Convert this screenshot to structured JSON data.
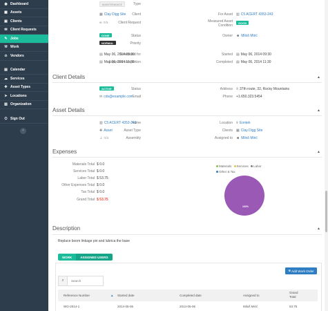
{
  "sidebar": {
    "items": [
      {
        "label": "Dashboard",
        "icon": "dashboard-icon",
        "glyph": "◉"
      },
      {
        "label": "Assets",
        "icon": "assets-icon",
        "glyph": "▦"
      },
      {
        "label": "Clients",
        "icon": "clients-icon",
        "glyph": "▣"
      },
      {
        "label": "Client Requests",
        "icon": "client-requests-icon",
        "glyph": "✉"
      },
      {
        "label": "Jobs",
        "icon": "jobs-icon",
        "glyph": "✎"
      },
      {
        "label": "Work",
        "icon": "work-icon",
        "glyph": "⚒"
      },
      {
        "label": "Vendors",
        "icon": "vendors-icon",
        "glyph": "⊙"
      },
      {
        "label": "Calendar",
        "icon": "calendar-icon",
        "glyph": "▤"
      },
      {
        "label": "Services",
        "icon": "services-icon",
        "glyph": "☁"
      },
      {
        "label": "Asset Types",
        "icon": "asset-types-icon",
        "glyph": "✚"
      },
      {
        "label": "Locations",
        "icon": "locations-icon",
        "glyph": "➤"
      },
      {
        "label": "Organization",
        "icon": "organization-icon",
        "glyph": "▥"
      },
      {
        "label": "Sign Out",
        "icon": "sign-out-icon",
        "glyph": "⏻"
      }
    ],
    "collapse_glyph": "‹"
  },
  "job": {
    "type_label": "Type",
    "type_value": "MAINTENANCE",
    "client_label": "Client",
    "client_value": "Clay Digg Site",
    "for_asset_label": "For Asset",
    "for_asset_value": "C5 ACERT 4353-243",
    "client_request_label": "Client Request",
    "client_request_value": "n/a",
    "measured_label_1": "Measured Asset",
    "measured_label_2": "Condition",
    "measured_value": "GOOD",
    "status_label": "Status",
    "status_value": "DONE",
    "owner_label": "Owner",
    "owner_value": "Miloš Mirić",
    "priority_label": "Priority",
    "priority_value": "NORMAL",
    "scheduled_label": "Scheduled for",
    "scheduled_value": "May 06, 2014 09:30",
    "started_label": "Started",
    "started_value": "May 06, 2014 09:30",
    "expected_label": "Expected completion",
    "expected_value": "May 06, 2014 11:30",
    "completed_label": "Completed",
    "completed_value": "May 06, 2014 11:30"
  },
  "client_details": {
    "title": "Client Details",
    "status_label": "Status",
    "status_value": "ACTIVE",
    "email_label": "Email",
    "email_value": "cds@example.com",
    "address_label": "Address",
    "address_value": "37th route, 32, Rocky Mountains",
    "phone_label": "Phone",
    "phone_value": "+1.650.323.5454"
  },
  "asset_details": {
    "title": "Asset Details",
    "name_label": "Name",
    "name_value": "C5 ACERT 4353-243",
    "asset_type_label": "Asset Type",
    "asset_type_value": "Asset",
    "assembly_label": "Assembly",
    "assembly_value": "n/a",
    "location_label": "Location",
    "location_value": "Eontek",
    "clients_label": "Clients",
    "clients_value": "Clay Digg Site",
    "assigned_label": "Assigned to",
    "assigned_value": "Miloš Mirić"
  },
  "expenses": {
    "title": "Expenses",
    "rows": [
      {
        "label": "Materials Total",
        "value": "$ 0.0"
      },
      {
        "label": "Services Total",
        "value": "$ 0.0"
      },
      {
        "label": "Labor Total",
        "value": "$ 53.75"
      },
      {
        "label": "Other Expenses Total",
        "value": "$ 0.0"
      },
      {
        "label": "Tax Total",
        "value": "$ 0.0"
      },
      {
        "label": "Grand Total",
        "value": "$ 53.75"
      }
    ]
  },
  "chart_data": {
    "type": "pie",
    "title": "",
    "legend": [
      "Materials",
      "Services",
      "Labor",
      "Other & Tax"
    ],
    "legend_colors": [
      "#8bc34a",
      "#e8c547",
      "#7f7f7f",
      "#2f7ec3"
    ],
    "values": [
      0,
      0,
      53.75,
      0
    ],
    "slice_color": "#9b59b6",
    "slice_label": "100%"
  },
  "description": {
    "title": "Description",
    "text": "Replace boom linkage pin and lubrica the base"
  },
  "work": {
    "tab_work": "WORK",
    "tab_assigned": "ASSIGNED USERS",
    "add_button": "Add Work Order",
    "search_placeholder": "Search",
    "columns": [
      "Reference Number",
      "Started date",
      "Completed date",
      "Assigned to",
      "Grand",
      "Total"
    ],
    "rows": [
      {
        "ref": "WO-2014-1",
        "started": "2014-05-06",
        "completed": "2014-05-06",
        "assigned": "Miloš Mirić",
        "total": "53.75"
      }
    ]
  }
}
